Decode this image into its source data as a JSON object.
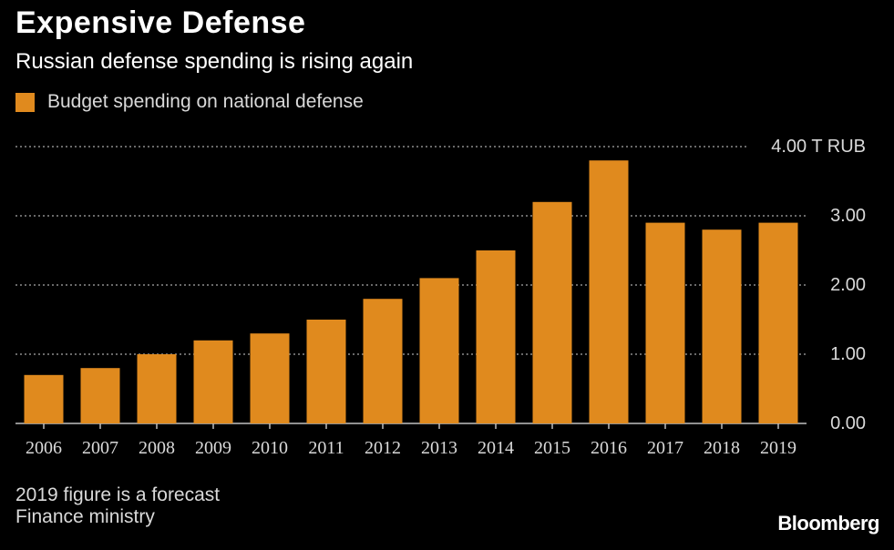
{
  "title": "Expensive Defense",
  "subtitle": "Russian defense spending is rising again",
  "footnote": "2019 figure is a forecast",
  "source": "Finance ministry",
  "brand": "Bloomberg",
  "colors": {
    "bar": "#e08a1e",
    "background": "#000000",
    "grid": "#8c8c8c",
    "text": "#ffffff",
    "muted_text": "#d9d9d9"
  },
  "chart_data": {
    "type": "bar",
    "title": "Expensive Defense",
    "subtitle": "Russian defense spending is rising again",
    "categories": [
      "2006",
      "2007",
      "2008",
      "2009",
      "2010",
      "2011",
      "2012",
      "2013",
      "2014",
      "2015",
      "2016",
      "2017",
      "2018",
      "2019"
    ],
    "series": [
      {
        "name": "Budget spending on national defense",
        "values": [
          0.7,
          0.8,
          1.0,
          1.2,
          1.3,
          1.5,
          1.8,
          2.1,
          2.5,
          3.2,
          3.8,
          2.9,
          2.8,
          2.9
        ]
      }
    ],
    "xlabel": "",
    "ylabel": "",
    "ylim": [
      0,
      4
    ],
    "yticks": [
      0,
      1,
      2,
      3,
      4
    ],
    "ytick_labels": [
      "0.00",
      "1.00",
      "2.00",
      "3.00",
      "4.00 T RUB"
    ],
    "grid": true,
    "grid_style": "dotted",
    "legend_position": "top-left",
    "y_axis_position": "right"
  }
}
